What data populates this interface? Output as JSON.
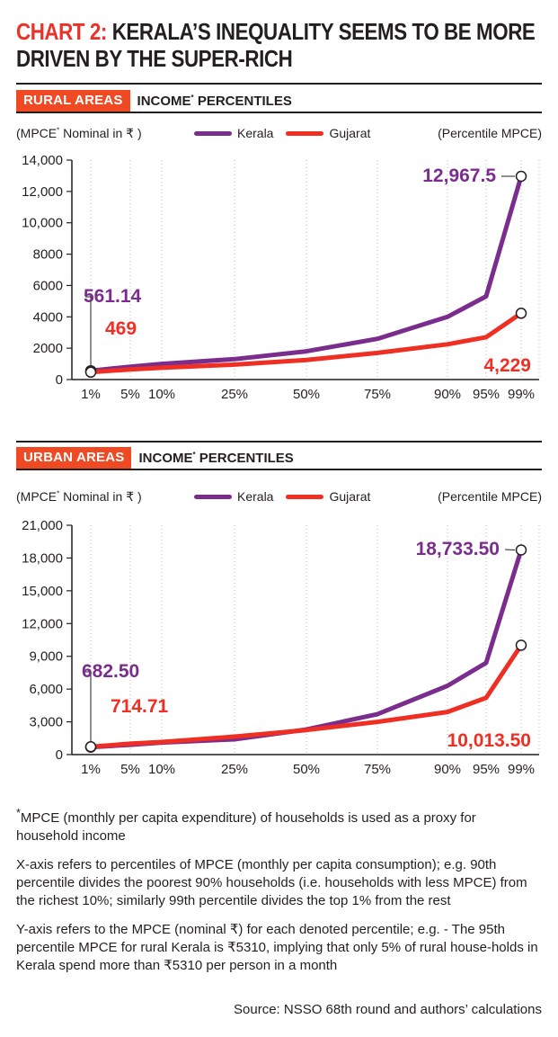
{
  "title": {
    "lead": "CHART 2:",
    "rest": " KERALA’S INEQUALITY SEEMS TO BE MORE DRIVEN BY THE SUPER-RICH"
  },
  "sections": {
    "rural": {
      "tag": "RURAL AREAS",
      "label_a": "INCOME",
      "label_mark": "*",
      "label_b": " PERCENTILES"
    },
    "urban": {
      "tag": "URBAN AREAS",
      "label_a": "INCOME",
      "label_mark": "*",
      "label_b": " PERCENTILES"
    }
  },
  "common": {
    "unit_a": "(MPCE",
    "unit_mark": "*",
    "unit_b": " Nominal in ₹ )",
    "percentile_label": "(Percentile MPCE)",
    "legend_kerala": "Kerala",
    "legend_gujarat": "Gujarat"
  },
  "colors": {
    "kerala": "#7b2d8e",
    "gujarat": "#ef2f23",
    "accent": "#ef4a23",
    "grid": "#b8b8b8"
  },
  "chart_data": [
    {
      "type": "line",
      "title": "RURAL AREAS",
      "ylabel": "(MPCE* Nominal in ₹ )",
      "xlabel": "(Percentile MPCE)",
      "x": [
        1,
        5,
        10,
        25,
        50,
        75,
        90,
        95,
        99
      ],
      "x_tick_labels": [
        "1%",
        "5%",
        "10%",
        "25%",
        "50%",
        "75%",
        "90%",
        "95%",
        "99%"
      ],
      "ylim": [
        0,
        14000
      ],
      "y_ticks": [
        0,
        2000,
        4000,
        6000,
        8000,
        10000,
        12000,
        14000
      ],
      "y_tick_labels": [
        "0",
        "2000",
        "4000",
        "6000",
        "8000",
        "10,000",
        "12,000",
        "14,000"
      ],
      "grid": "vertical dotted",
      "legend": "top",
      "series": [
        {
          "name": "Kerala",
          "color": "#7b2d8e",
          "values": [
            561.14,
            820,
            1000,
            1300,
            1800,
            2600,
            4000,
            5310,
            12967.5
          ]
        },
        {
          "name": "Gujarat",
          "color": "#ef2f23",
          "values": [
            469,
            650,
            750,
            950,
            1250,
            1700,
            2250,
            2700,
            4229
          ]
        }
      ],
      "annotations": [
        {
          "series": "Kerala",
          "x": 1,
          "text": "561.14"
        },
        {
          "series": "Gujarat",
          "x": 1,
          "text": "469"
        },
        {
          "series": "Kerala",
          "x": 99,
          "text": "12,967.5"
        },
        {
          "series": "Gujarat",
          "x": 99,
          "text": "4,229"
        }
      ]
    },
    {
      "type": "line",
      "title": "URBAN AREAS",
      "ylabel": "(MPCE* Nominal in ₹ )",
      "xlabel": "(Percentile MPCE)",
      "x": [
        1,
        5,
        10,
        25,
        50,
        75,
        90,
        95,
        99
      ],
      "x_tick_labels": [
        "1%",
        "5%",
        "10%",
        "25%",
        "50%",
        "75%",
        "90%",
        "95%",
        "99%"
      ],
      "ylim": [
        0,
        21000
      ],
      "y_ticks": [
        0,
        3000,
        6000,
        9000,
        12000,
        15000,
        18000,
        21000
      ],
      "y_tick_labels": [
        "0",
        "3,000",
        "6,000",
        "9,000",
        "12,000",
        "15,000",
        "18,000",
        "21,000"
      ],
      "grid": "vertical dotted",
      "legend": "top",
      "series": [
        {
          "name": "Kerala",
          "color": "#7b2d8e",
          "values": [
            682.5,
            900,
            1100,
            1400,
            2300,
            3700,
            6300,
            8400,
            18733.5
          ]
        },
        {
          "name": "Gujarat",
          "color": "#ef2f23",
          "values": [
            714.71,
            1000,
            1150,
            1650,
            2250,
            3000,
            3900,
            5200,
            10013.5
          ]
        }
      ],
      "annotations": [
        {
          "series": "Kerala",
          "x": 1,
          "text": "682.50"
        },
        {
          "series": "Gujarat",
          "x": 1,
          "text": "714.71"
        },
        {
          "series": "Kerala",
          "x": 99,
          "text": "18,733.50"
        },
        {
          "series": "Gujarat",
          "x": 99,
          "text": "10,013.50"
        }
      ]
    }
  ],
  "notes": {
    "note1_mark": "*",
    "note1": "MPCE (monthly per capita expenditure) of households is used as a proxy for household income",
    "note2": "X-axis refers to percentiles of MPCE (monthly per capita consumption); e.g. 90th percentile divides the poorest 90% households (i.e. households with less MPCE) from the richest 10%; similarly 99th percentile divides the top 1% from the rest",
    "note3": "Y-axis refers to the MPCE (nominal ₹) for each denoted percentile; e.g. - The 95th percentile MPCE for rural Kerala is ₹5310, implying that only 5% of rural house-holds in Kerala spend more than ₹5310 per person in a month",
    "source": "Source: NSSO 68th round and authors’ calculations"
  }
}
